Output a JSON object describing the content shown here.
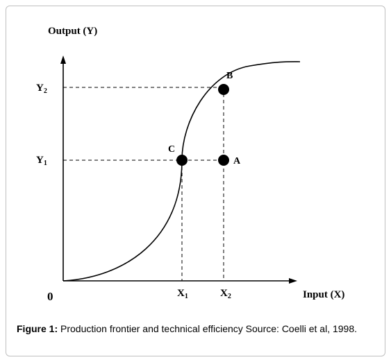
{
  "diagram": {
    "y_axis_title": "Output (Y)",
    "x_axis_title": "Input (X)",
    "origin_label": "0",
    "y_ticks": [
      {
        "main": "Y",
        "sub": "2"
      },
      {
        "main": "Y",
        "sub": "1"
      }
    ],
    "x_ticks": [
      {
        "main": "X",
        "sub": "1"
      },
      {
        "main": "X",
        "sub": "2"
      }
    ],
    "points": {
      "B": "B",
      "C": "C",
      "A": "A"
    }
  },
  "caption": {
    "label": "Figure 1:",
    "text": " Production frontier and technical efficiency Source: Coelli et al, 1998."
  }
}
